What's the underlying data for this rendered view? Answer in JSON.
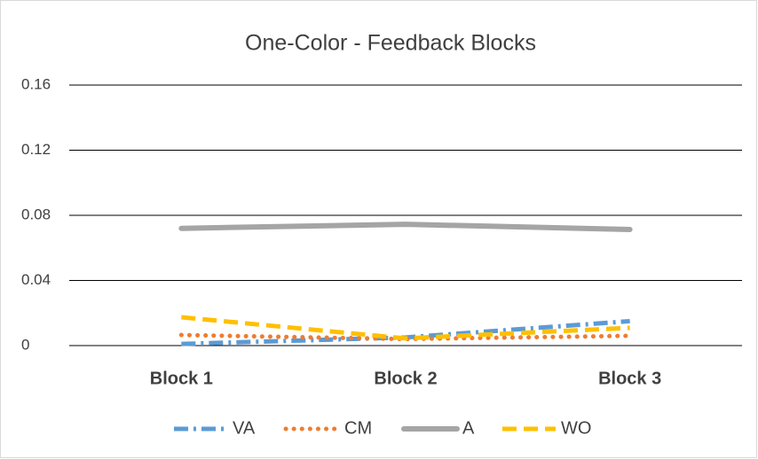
{
  "chart_data": {
    "type": "line",
    "title": "One-Color - Feedback Blocks",
    "categories": [
      "Block 1",
      "Block 2",
      "Block 3"
    ],
    "series": [
      {
        "name": "VA",
        "color": "#5b9bd5",
        "values": [
          0.001,
          0.005,
          0.015
        ]
      },
      {
        "name": "CM",
        "color": "#ed7d31",
        "values": [
          0.0065,
          0.004,
          0.006
        ]
      },
      {
        "name": "A",
        "color": "#a5a5a5",
        "values": [
          0.072,
          0.0745,
          0.0713
        ]
      },
      {
        "name": "WO",
        "color": "#ffc000",
        "values": [
          0.0174,
          0.0044,
          0.0109
        ]
      }
    ],
    "ylim": [
      0,
      0.16
    ],
    "yticks": [
      0,
      0.04,
      0.08,
      0.12,
      0.16
    ],
    "grid": true,
    "legend": "bottom"
  }
}
